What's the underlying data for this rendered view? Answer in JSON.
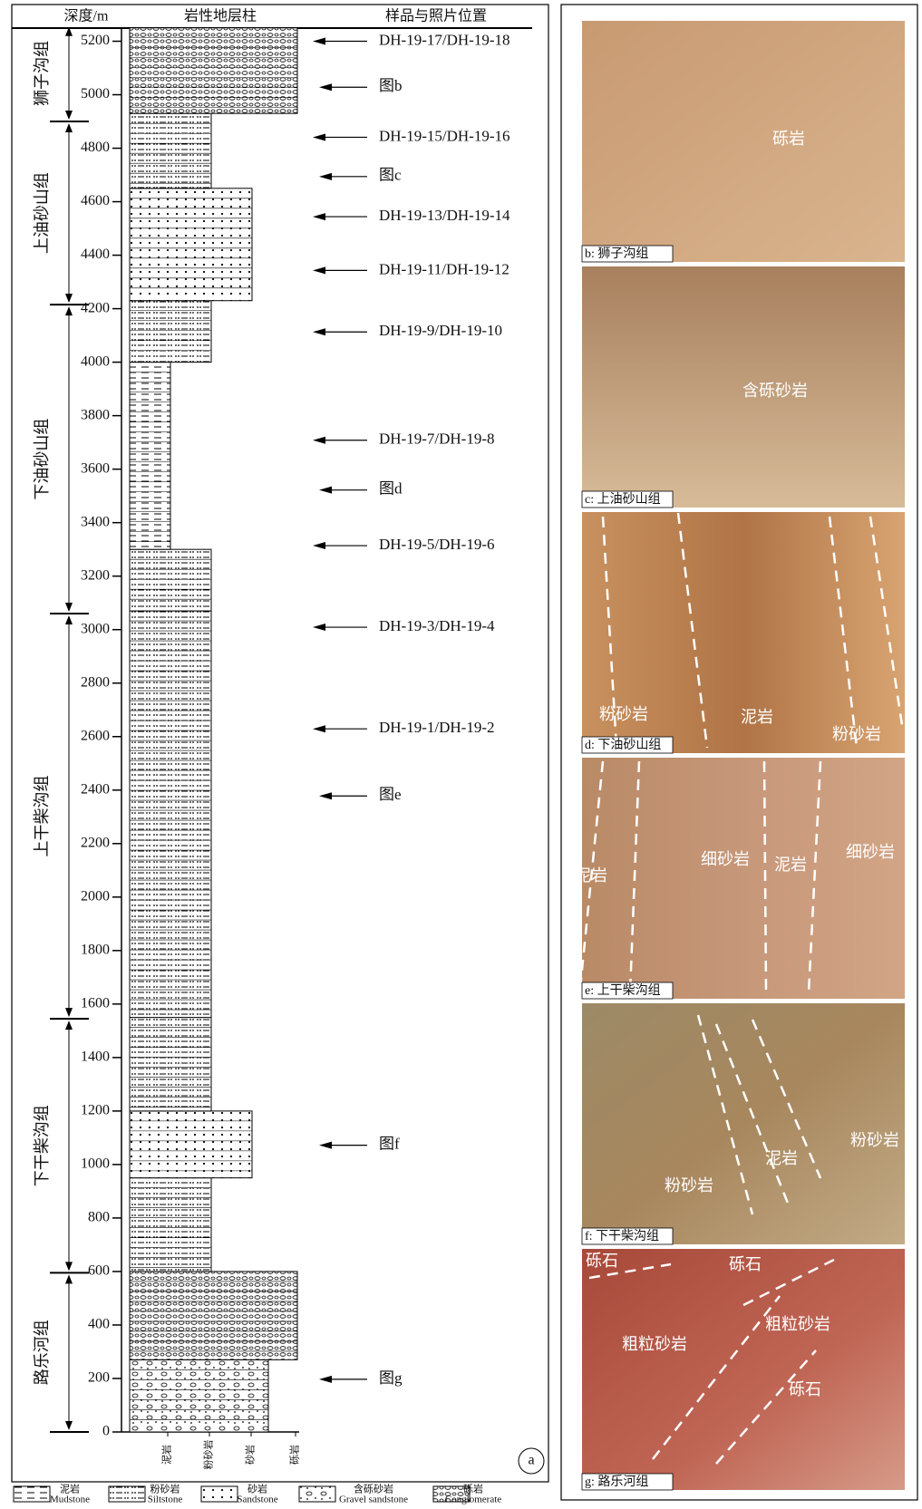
{
  "header": {
    "depth": "深度/m",
    "column": "岩性地层柱",
    "samples": "样品与照片位置"
  },
  "depth_ticks": [
    0,
    200,
    400,
    600,
    800,
    1000,
    1200,
    1400,
    1600,
    1800,
    2000,
    2200,
    2400,
    2600,
    2800,
    3000,
    3200,
    3400,
    3600,
    3800,
    4000,
    4200,
    4400,
    4600,
    4800,
    5000,
    5200
  ],
  "formations": [
    {
      "name": "狮子沟组",
      "base": 4900,
      "top": 5320
    },
    {
      "name": "上油砂山组",
      "base": 4215,
      "top": 4900
    },
    {
      "name": "下油砂山组",
      "base": 3060,
      "top": 4215
    },
    {
      "name": "上干柴沟组",
      "base": 1545,
      "top": 3060
    },
    {
      "name": "下干柴沟组",
      "base": 595,
      "top": 1545
    },
    {
      "name": "路乐河组",
      "base": 0,
      "top": 595
    }
  ],
  "layers": [
    {
      "base": 0,
      "top": 270,
      "lith": 3
    },
    {
      "base": 270,
      "top": 600,
      "lith": 4
    },
    {
      "base": 600,
      "top": 950,
      "lith": 1
    },
    {
      "base": 950,
      "top": 1200,
      "lith": 2
    },
    {
      "base": 1200,
      "top": 1550,
      "lith": 1
    },
    {
      "base": 1550,
      "top": 3070,
      "lith": 1
    },
    {
      "base": 3070,
      "top": 3300,
      "lith": 1
    },
    {
      "base": 3300,
      "top": 4000,
      "lith": 0
    },
    {
      "base": 4000,
      "top": 4230,
      "lith": 1
    },
    {
      "base": 4230,
      "top": 4650,
      "lith": 2
    },
    {
      "base": 4650,
      "top": 4930,
      "lith": 1
    },
    {
      "base": 4930,
      "top": 5250,
      "lith": 4
    }
  ],
  "samples": [
    {
      "label": "DH-19-17/DH-19-18",
      "depth": 5200
    },
    {
      "label": "图b",
      "depth": 5028
    },
    {
      "label": "DH-19-15/DH-19-16",
      "depth": 4841
    },
    {
      "label": "图c",
      "depth": 4694
    },
    {
      "label": "DH-19-13/DH-19-14",
      "depth": 4544
    },
    {
      "label": "DH-19-11/DH-19-12",
      "depth": 4343
    },
    {
      "label": "DH-19-9/DH-19-10",
      "depth": 4113
    },
    {
      "label": "DH-19-7/DH-19-8",
      "depth": 3708
    },
    {
      "label": "图d",
      "depth": 3522
    },
    {
      "label": "DH-19-5/DH-19-6",
      "depth": 3314
    },
    {
      "label": "DH-19-3/DH-19-4",
      "depth": 3009
    },
    {
      "label": "DH-19-1/DH-19-2",
      "depth": 2629
    },
    {
      "label": "图e",
      "depth": 2378
    },
    {
      "label": "图f",
      "depth": 1072
    },
    {
      "label": "图g",
      "depth": 197
    }
  ],
  "lithology_axis": [
    "泥岩",
    "粉砂岩",
    "砂岩",
    "砾岩"
  ],
  "legend": [
    {
      "zh": "泥岩",
      "en": "Mudstone"
    },
    {
      "zh": "粉砂岩",
      "en": "Siltstone"
    },
    {
      "zh": "砂岩",
      "en": "Sandstone"
    },
    {
      "zh": "含砾砂岩",
      "en": "Gravel sandstone"
    },
    {
      "zh": "砾岩",
      "en": "Conglomerate"
    }
  ],
  "panel_label": "a",
  "photos": [
    {
      "caption": "b: 狮子沟组",
      "labels": [
        "砾岩"
      ]
    },
    {
      "caption": "c: 上油砂山组",
      "labels": [
        "含砾砂岩"
      ]
    },
    {
      "caption": "d: 下油砂山组",
      "labels": [
        "粉砂岩",
        "泥岩",
        "粉砂岩"
      ]
    },
    {
      "caption": "e: 上干柴沟组",
      "labels": [
        "泥岩",
        "细砂岩",
        "泥岩",
        "细砂岩"
      ]
    },
    {
      "caption": "f: 下干柴沟组",
      "labels": [
        "粉砂岩",
        "泥岩",
        "粉砂岩"
      ]
    },
    {
      "caption": "g: 路乐河组",
      "labels": [
        "砾石",
        "砾石",
        "粗粒砂岩",
        "粗粒砂岩",
        "砾石"
      ]
    }
  ]
}
